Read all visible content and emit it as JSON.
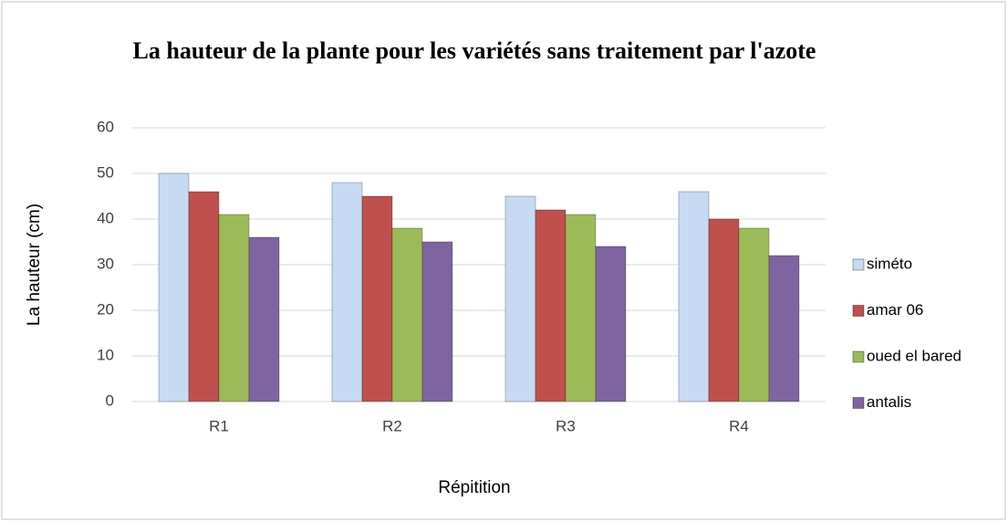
{
  "chart_data": {
    "type": "bar",
    "title": "La hauteur de la plante pour les variétés sans traitement par l'azote",
    "x_label": "Répitition",
    "y_label": "La hauteur (cm)",
    "categories": [
      "R1",
      "R2",
      "R3",
      "R4"
    ],
    "series": [
      {
        "name": "siméto",
        "color": "#c6dbf3",
        "values": [
          50,
          48,
          45,
          46
        ]
      },
      {
        "name": "amar 06",
        "color": "#c0504d",
        "values": [
          46,
          45,
          42,
          40
        ]
      },
      {
        "name": "oued el bared",
        "color": "#9bbb59",
        "values": [
          41,
          38,
          41,
          38
        ]
      },
      {
        "name": "antalis",
        "color": "#8064a2",
        "values": [
          36,
          35,
          34,
          32
        ]
      }
    ],
    "ylim": [
      0,
      60
    ],
    "yticks": [
      0,
      10,
      20,
      30,
      40,
      50,
      60
    ],
    "grid": true,
    "legend": "right"
  }
}
